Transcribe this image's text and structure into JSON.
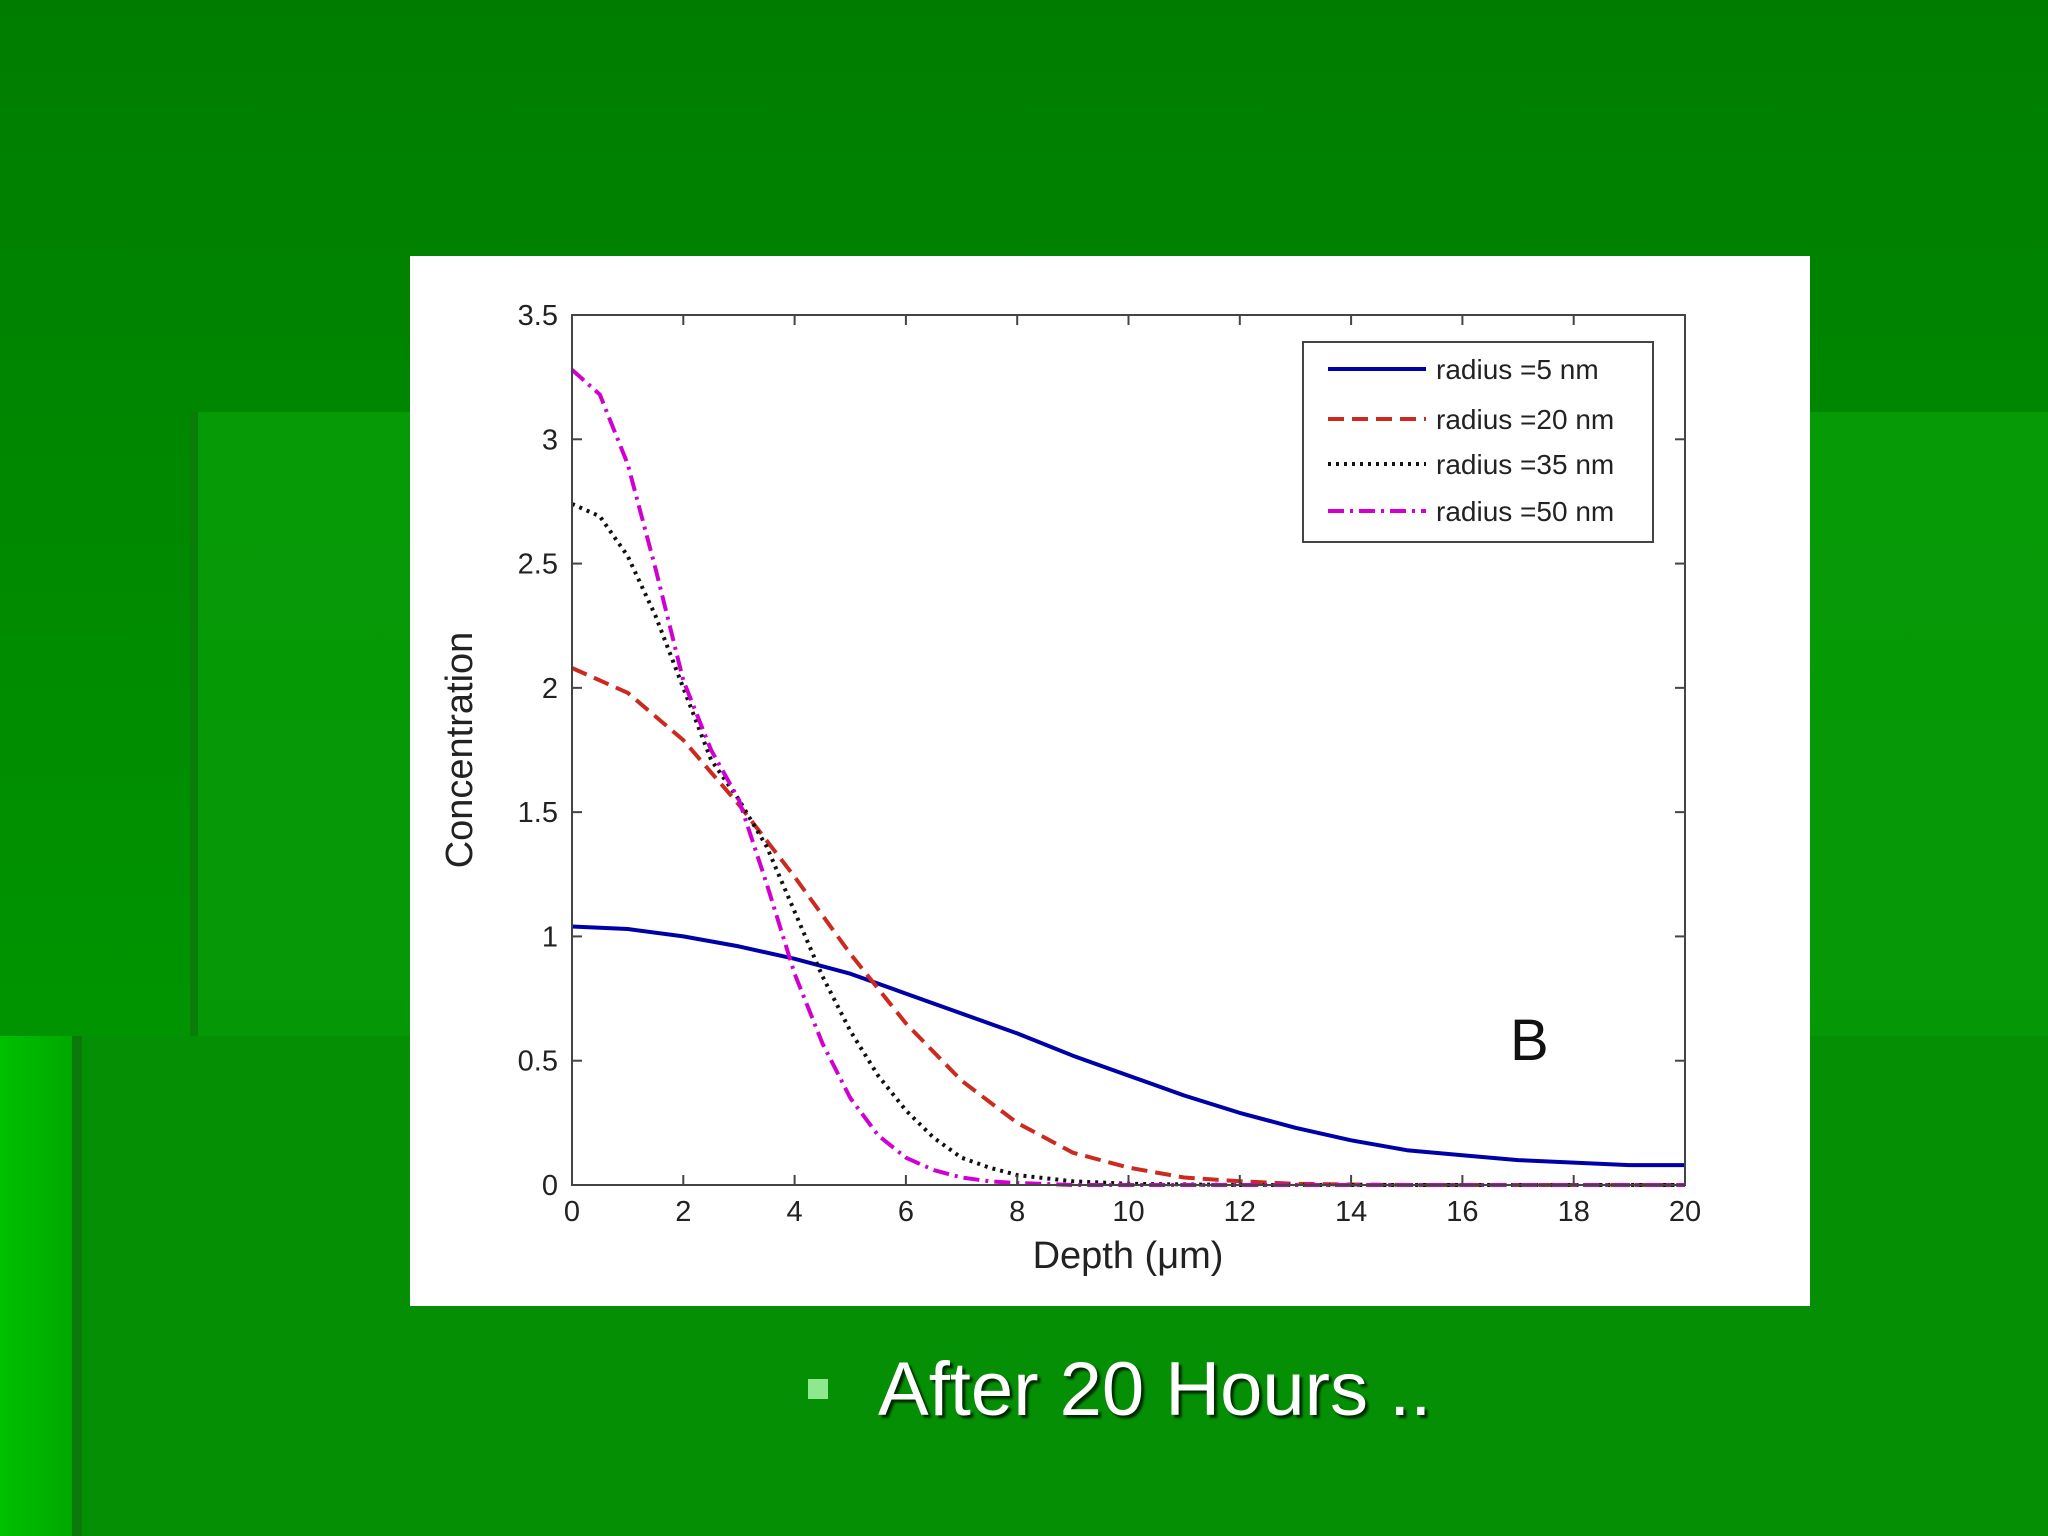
{
  "slide": {
    "bullet_text": "After 20 Hours .."
  },
  "colors": {
    "background": "#008a00",
    "bullet_marker": "#8fe88f",
    "bullet_text": "#ffffff"
  },
  "chart_data": {
    "type": "line",
    "title": "",
    "xlabel": "Depth (μm)",
    "ylabel": "Concentration",
    "annotation": "B",
    "xlim": [
      0,
      20
    ],
    "ylim": [
      0,
      3.5
    ],
    "x_ticks": [
      0,
      2,
      4,
      6,
      8,
      10,
      12,
      14,
      16,
      18,
      20
    ],
    "y_ticks": [
      0,
      0.5,
      1,
      1.5,
      2,
      2.5,
      3,
      3.5
    ],
    "x_tick_labels": [
      "0",
      "2",
      "4",
      "6",
      "8",
      "10",
      "12",
      "14",
      "16",
      "18",
      "20"
    ],
    "y_tick_labels": [
      "0",
      "0.5",
      "1",
      "1.5",
      "2",
      "2.5",
      "3",
      "3.5"
    ],
    "legend_position": "top-right",
    "grid": false,
    "series": [
      {
        "name": "radius =5 nm",
        "color": "#0000a8",
        "style": "solid",
        "x": [
          0,
          1,
          2,
          3,
          4,
          5,
          6,
          7,
          8,
          9,
          10,
          11,
          12,
          13,
          14,
          15,
          16,
          17,
          18,
          19,
          20
        ],
        "y": [
          1.04,
          1.03,
          1.0,
          0.96,
          0.91,
          0.85,
          0.77,
          0.69,
          0.61,
          0.52,
          0.44,
          0.36,
          0.29,
          0.23,
          0.18,
          0.14,
          0.12,
          0.1,
          0.09,
          0.08,
          0.08
        ]
      },
      {
        "name": "radius =20 nm",
        "color": "#cc2a1e",
        "style": "dashed",
        "x": [
          0,
          1,
          2,
          3,
          4,
          5,
          6,
          7,
          8,
          9,
          10,
          11,
          12,
          13,
          14,
          15,
          16,
          17,
          18,
          19,
          20
        ],
        "y": [
          2.08,
          1.98,
          1.79,
          1.53,
          1.24,
          0.93,
          0.65,
          0.42,
          0.25,
          0.13,
          0.07,
          0.03,
          0.015,
          0.005,
          0.002,
          0,
          0,
          0,
          0,
          0,
          0
        ]
      },
      {
        "name": "radius =35 nm",
        "color": "#111111",
        "style": "dotted",
        "x": [
          0,
          0.5,
          1,
          1.5,
          2,
          2.5,
          3,
          3.5,
          4,
          4.5,
          5,
          5.5,
          6,
          6.5,
          7,
          7.5,
          8,
          9,
          10,
          12,
          14,
          16,
          18,
          20
        ],
        "y": [
          2.74,
          2.69,
          2.53,
          2.29,
          2.0,
          1.71,
          1.55,
          1.36,
          1.1,
          0.84,
          0.62,
          0.44,
          0.3,
          0.19,
          0.11,
          0.07,
          0.04,
          0.015,
          0.005,
          0,
          0,
          0,
          0,
          0
        ]
      },
      {
        "name": "radius =50 nm",
        "color": "#d100d1",
        "style": "dash-dot",
        "x": [
          0,
          0.5,
          1,
          1.5,
          2,
          2.5,
          3,
          3.5,
          4,
          4.5,
          5,
          5.5,
          6,
          6.5,
          7,
          7.5,
          8,
          9,
          10,
          12,
          14,
          16,
          18,
          20
        ],
        "y": [
          3.28,
          3.18,
          2.9,
          2.48,
          2.03,
          1.75,
          1.55,
          1.21,
          0.85,
          0.57,
          0.35,
          0.2,
          0.11,
          0.06,
          0.03,
          0.015,
          0.008,
          0,
          0,
          0,
          0,
          0,
          0,
          0
        ]
      }
    ]
  }
}
